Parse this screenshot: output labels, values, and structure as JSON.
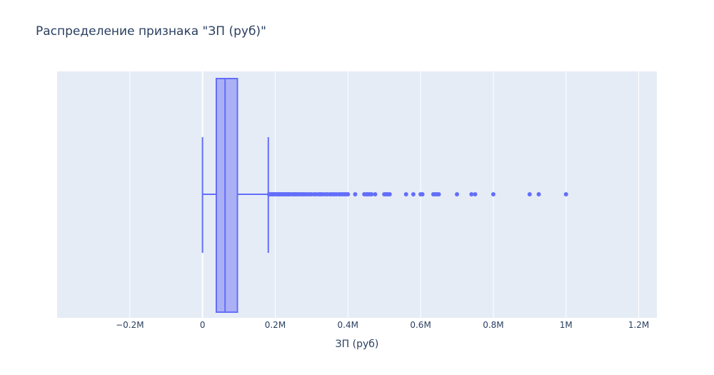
{
  "chart_data": {
    "type": "box",
    "title": "Распределение признака \"ЗП (руб)\"",
    "xlabel": "ЗП (руб)",
    "ylabel": "",
    "xlim": [
      -0.4,
      1.25
    ],
    "x_unit": "M",
    "grid": true,
    "x_ticks": [
      {
        "value": -0.2,
        "label": "−0.2M"
      },
      {
        "value": 0,
        "label": "0"
      },
      {
        "value": 0.2,
        "label": "0.2M"
      },
      {
        "value": 0.4,
        "label": "0.4M"
      },
      {
        "value": 0.6,
        "label": "0.6M"
      },
      {
        "value": 0.8,
        "label": "0.8M"
      },
      {
        "value": 1.0,
        "label": "1M"
      },
      {
        "value": 1.2,
        "label": "1.2M"
      }
    ],
    "box": {
      "lower_fence": 0.0,
      "q1": 0.038,
      "median": 0.062,
      "q3": 0.096,
      "upper_fence": 0.181
    },
    "outliers": [
      0.183,
      0.186,
      0.19,
      0.193,
      0.196,
      0.2,
      0.203,
      0.207,
      0.21,
      0.213,
      0.217,
      0.22,
      0.223,
      0.227,
      0.23,
      0.234,
      0.237,
      0.24,
      0.245,
      0.25,
      0.254,
      0.258,
      0.262,
      0.267,
      0.272,
      0.277,
      0.282,
      0.288,
      0.294,
      0.3,
      0.307,
      0.313,
      0.32,
      0.325,
      0.33,
      0.337,
      0.343,
      0.35,
      0.356,
      0.362,
      0.368,
      0.375,
      0.38,
      0.385,
      0.39,
      0.395,
      0.4,
      0.42,
      0.445,
      0.45,
      0.455,
      0.46,
      0.465,
      0.475,
      0.5,
      0.505,
      0.51,
      0.515,
      0.56,
      0.58,
      0.6,
      0.605,
      0.635,
      0.64,
      0.645,
      0.65,
      0.7,
      0.74,
      0.75,
      0.8,
      0.9,
      0.925,
      1.0
    ],
    "colors": {
      "box_line": "#636efa",
      "box_fill": "#a4aaf5",
      "marker": "#636efa",
      "plot_bg": "#e5ecf6",
      "grid": "#ffffff",
      "text": "#2a3f5f"
    }
  }
}
